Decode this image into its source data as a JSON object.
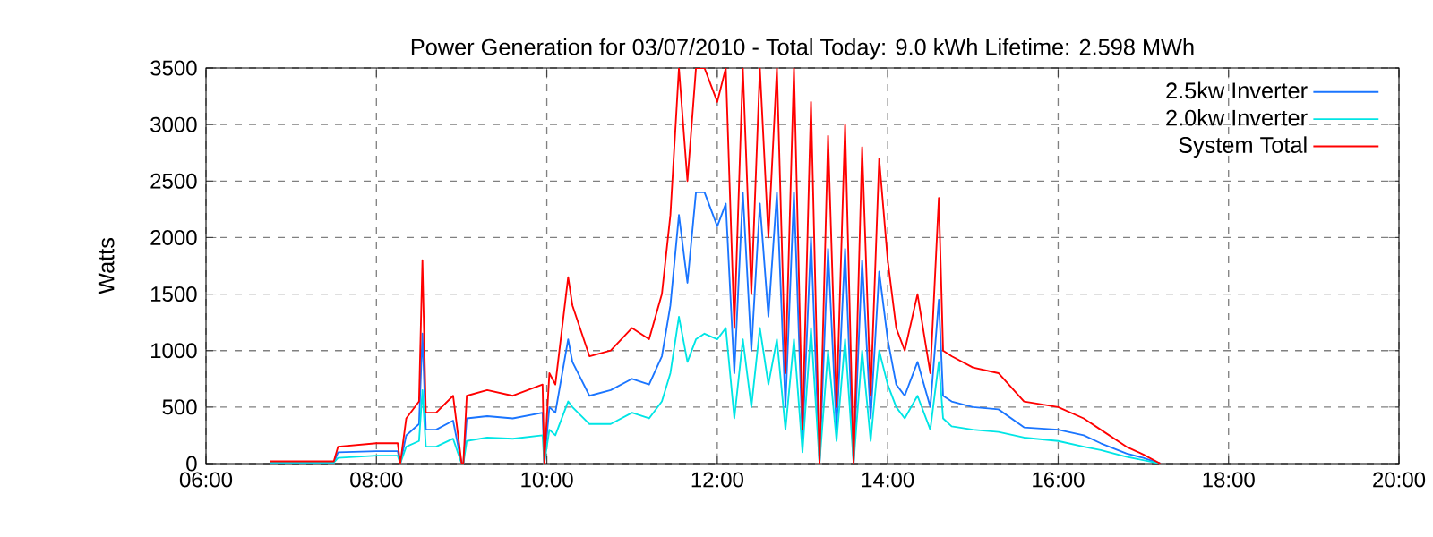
{
  "chart_data": {
    "type": "line",
    "title": "Power Generation for 03/07/2010 - Total Today: 9.0 kWh   Lifetime: 2.598 MWh",
    "ylabel": "Watts",
    "x": [
      6.75,
      7.5,
      7.55,
      8.0,
      8.25,
      8.28,
      8.35,
      8.5,
      8.54,
      8.58,
      8.7,
      8.9,
      9.0,
      9.02,
      9.06,
      9.3,
      9.6,
      9.95,
      9.97,
      10.03,
      10.1,
      10.25,
      10.3,
      10.5,
      10.75,
      11.0,
      11.2,
      11.35,
      11.45,
      11.55,
      11.65,
      11.75,
      11.85,
      12.0,
      12.1,
      12.2,
      12.3,
      12.4,
      12.5,
      12.6,
      12.7,
      12.8,
      12.9,
      13.0,
      13.1,
      13.2,
      13.3,
      13.4,
      13.5,
      13.6,
      13.7,
      13.8,
      13.9,
      14.0,
      14.1,
      14.2,
      14.35,
      14.5,
      14.6,
      14.65,
      14.75,
      15.0,
      15.3,
      15.6,
      16.0,
      16.3,
      16.5,
      16.8,
      17.0,
      17.2
    ],
    "series": [
      {
        "name": "2.5kw Inverter",
        "color": "#1a75ff",
        "values": [
          10,
          10,
          100,
          110,
          110,
          0,
          250,
          350,
          1150,
          300,
          300,
          380,
          0,
          0,
          400,
          420,
          400,
          450,
          0,
          500,
          450,
          1100,
          900,
          600,
          650,
          750,
          700,
          950,
          1400,
          2200,
          1600,
          2400,
          2400,
          2100,
          2300,
          800,
          2400,
          1000,
          2300,
          1300,
          2400,
          500,
          2400,
          200,
          2000,
          0,
          1900,
          300,
          1900,
          0,
          1800,
          400,
          1700,
          1100,
          700,
          600,
          900,
          500,
          1450,
          600,
          550,
          500,
          480,
          320,
          300,
          250,
          180,
          90,
          50,
          0
        ]
      },
      {
        "name": "2.0kw Inverter",
        "color": "#00e5e5",
        "values": [
          10,
          10,
          50,
          70,
          70,
          0,
          150,
          200,
          650,
          150,
          150,
          220,
          0,
          0,
          200,
          230,
          220,
          250,
          0,
          300,
          250,
          550,
          500,
          350,
          350,
          450,
          400,
          550,
          800,
          1300,
          900,
          1100,
          1150,
          1100,
          1200,
          400,
          1100,
          500,
          1200,
          700,
          1100,
          300,
          1100,
          100,
          1200,
          0,
          1000,
          200,
          1100,
          0,
          1000,
          200,
          1000,
          700,
          500,
          400,
          600,
          300,
          900,
          400,
          330,
          300,
          280,
          230,
          200,
          150,
          120,
          60,
          30,
          0
        ]
      },
      {
        "name": "System Total",
        "color": "#ff0000",
        "values": [
          20,
          20,
          150,
          180,
          180,
          0,
          400,
          550,
          1800,
          450,
          450,
          600,
          0,
          0,
          600,
          650,
          600,
          700,
          0,
          800,
          700,
          1650,
          1400,
          950,
          1000,
          1200,
          1100,
          1500,
          2200,
          3500,
          2500,
          3500,
          3500,
          3200,
          3500,
          1200,
          3500,
          1500,
          3500,
          2000,
          3500,
          800,
          3500,
          300,
          3200,
          0,
          2900,
          500,
          3000,
          0,
          2800,
          600,
          2700,
          1800,
          1200,
          1000,
          1500,
          800,
          2350,
          1000,
          950,
          850,
          800,
          550,
          500,
          400,
          300,
          150,
          80,
          0
        ]
      }
    ],
    "xlim": [
      6,
      20
    ],
    "xticks": [
      {
        "value": 6,
        "label": "06:00"
      },
      {
        "value": 8,
        "label": "08:00"
      },
      {
        "value": 10,
        "label": "10:00"
      },
      {
        "value": 12,
        "label": "12:00"
      },
      {
        "value": 14,
        "label": "14:00"
      },
      {
        "value": 16,
        "label": "16:00"
      },
      {
        "value": 18,
        "label": "18:00"
      },
      {
        "value": 20,
        "label": "20:00"
      }
    ],
    "ylim": [
      0,
      3500
    ],
    "yticks": [
      0,
      500,
      1000,
      1500,
      2000,
      2500,
      3000,
      3500
    ],
    "grid": true,
    "legend": "top right",
    "marker": "none",
    "line_style": "solid"
  }
}
